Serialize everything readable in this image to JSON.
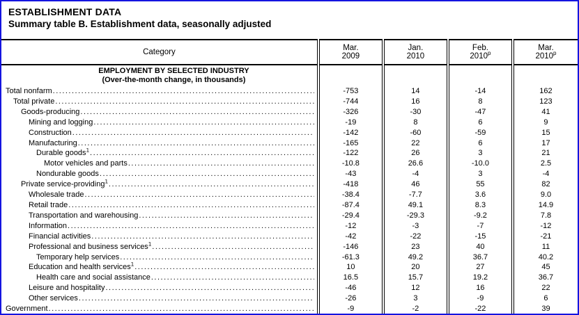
{
  "page": {
    "title": "ESTABLISHMENT DATA",
    "subtitle": "Summary table B. Establishment data, seasonally adjusted"
  },
  "table": {
    "category_header": "Category",
    "columns": [
      {
        "month": "Mar.",
        "year": "2009",
        "sup": ""
      },
      {
        "month": "Jan.",
        "year": "2010",
        "sup": ""
      },
      {
        "month": "Feb.",
        "year": "2010",
        "sup": "p"
      },
      {
        "month": "Mar.",
        "year": "2010",
        "sup": "p"
      }
    ],
    "section_heading_line1": "EMPLOYMENT BY SELECTED INDUSTRY",
    "section_heading_line2": "(Over-the-month change, in thousands)",
    "rows": [
      {
        "label": "Total nonfarm",
        "sup": "",
        "indent": 0,
        "values": [
          "-753",
          "14",
          "-14",
          "162"
        ]
      },
      {
        "label": "Total private",
        "sup": "",
        "indent": 1,
        "values": [
          "-744",
          "16",
          "8",
          "123"
        ]
      },
      {
        "label": "Goods-producing",
        "sup": "",
        "indent": 2,
        "values": [
          "-326",
          "-30",
          "-47",
          "41"
        ]
      },
      {
        "label": "Mining and logging",
        "sup": "",
        "indent": 3,
        "values": [
          "-19",
          "8",
          "6",
          "9"
        ]
      },
      {
        "label": "Construction",
        "sup": "",
        "indent": 3,
        "values": [
          "-142",
          "-60",
          "-59",
          "15"
        ]
      },
      {
        "label": "Manufacturing",
        "sup": "",
        "indent": 3,
        "values": [
          "-165",
          "22",
          "6",
          "17"
        ]
      },
      {
        "label": "Durable goods",
        "sup": "1",
        "indent": 4,
        "values": [
          "-122",
          "26",
          "3",
          "21"
        ]
      },
      {
        "label": "Motor vehicles and parts",
        "sup": "",
        "indent": 5,
        "values": [
          "-10.8",
          "26.6",
          "-10.0",
          "2.5"
        ]
      },
      {
        "label": "Nondurable goods",
        "sup": "",
        "indent": 4,
        "values": [
          "-43",
          "-4",
          "3",
          "-4"
        ]
      },
      {
        "label": "Private service-providing",
        "sup": "1",
        "indent": 2,
        "values": [
          "-418",
          "46",
          "55",
          "82"
        ]
      },
      {
        "label": "Wholesale trade",
        "sup": "",
        "indent": 3,
        "values": [
          "-38.4",
          "-7.7",
          "3.6",
          "9.0"
        ]
      },
      {
        "label": "Retail trade",
        "sup": "",
        "indent": 3,
        "values": [
          "-87.4",
          "49.1",
          "8.3",
          "14.9"
        ]
      },
      {
        "label": "Transportation and warehousing",
        "sup": "",
        "indent": 3,
        "values": [
          "-29.4",
          "-29.3",
          "-9.2",
          "7.8"
        ]
      },
      {
        "label": "Information",
        "sup": "",
        "indent": 3,
        "values": [
          "-12",
          "-3",
          "-7",
          "-12"
        ]
      },
      {
        "label": "Financial activities",
        "sup": "",
        "indent": 3,
        "values": [
          "-42",
          "-22",
          "-15",
          "-21"
        ]
      },
      {
        "label": "Professional and business services",
        "sup": "1",
        "indent": 3,
        "values": [
          "-146",
          "23",
          "40",
          "11"
        ]
      },
      {
        "label": "Temporary help services",
        "sup": "",
        "indent": 4,
        "values": [
          "-61.3",
          "49.2",
          "36.7",
          "40.2"
        ]
      },
      {
        "label": "Education and health services",
        "sup": "1",
        "indent": 3,
        "values": [
          "10",
          "20",
          "27",
          "45"
        ]
      },
      {
        "label": "Health care and social assistance",
        "sup": "",
        "indent": 4,
        "values": [
          "16.5",
          "15.7",
          "19.2",
          "36.7"
        ]
      },
      {
        "label": "Leisure and hospitality",
        "sup": "",
        "indent": 3,
        "values": [
          "-46",
          "12",
          "16",
          "22"
        ]
      },
      {
        "label": "Other services",
        "sup": "",
        "indent": 3,
        "values": [
          "-26",
          "3",
          "-9",
          "6"
        ]
      },
      {
        "label": "Government",
        "sup": "",
        "indent": 0,
        "values": [
          "-9",
          "-2",
          "-22",
          "39"
        ]
      }
    ]
  }
}
